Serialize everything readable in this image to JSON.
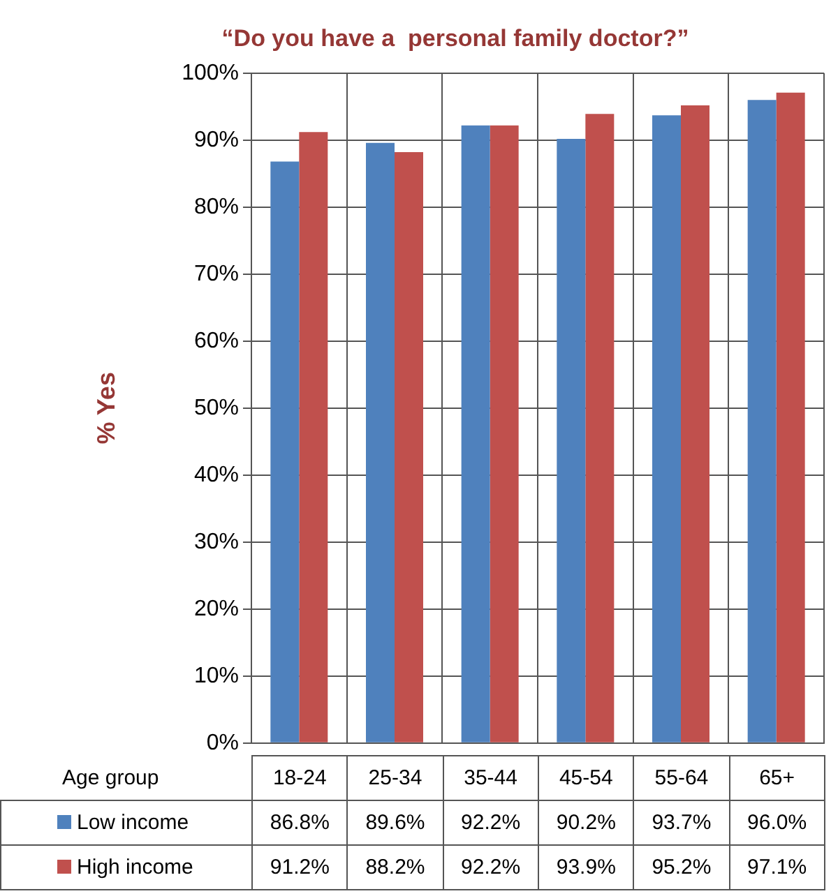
{
  "chart_data": {
    "type": "bar",
    "title": "“Do you have a  personal family doctor?”",
    "xlabel": "Age group",
    "ylabel": "% Yes",
    "categories": [
      "18-24",
      "25-34",
      "35-44",
      "45-54",
      "55-64",
      "65+"
    ],
    "series": [
      {
        "name": "Low income",
        "color": "#4f81bd",
        "values": [
          86.8,
          89.6,
          92.2,
          90.2,
          93.7,
          96.0
        ],
        "value_labels": [
          "86.8%",
          "89.6%",
          "92.2%",
          "90.2%",
          "93.7%",
          "96.0%"
        ]
      },
      {
        "name": "High income",
        "color": "#c0504d",
        "values": [
          91.2,
          88.2,
          92.2,
          93.9,
          95.2,
          97.1
        ],
        "value_labels": [
          "91.2%",
          "88.2%",
          "92.2%",
          "93.9%",
          "95.2%",
          "97.1%"
        ]
      }
    ],
    "ylim": [
      0,
      100
    ],
    "yticks": [
      {
        "value": 0,
        "label": "0%"
      },
      {
        "value": 10,
        "label": "10%"
      },
      {
        "value": 20,
        "label": "20%"
      },
      {
        "value": 30,
        "label": "30%"
      },
      {
        "value": 40,
        "label": "40%"
      },
      {
        "value": 50,
        "label": "50%"
      },
      {
        "value": 60,
        "label": "60%"
      },
      {
        "value": 70,
        "label": "70%"
      },
      {
        "value": 80,
        "label": "80%"
      },
      {
        "value": 90,
        "label": "90%"
      },
      {
        "value": 100,
        "label": "100%"
      }
    ],
    "grid": true,
    "legend": "bottom"
  }
}
